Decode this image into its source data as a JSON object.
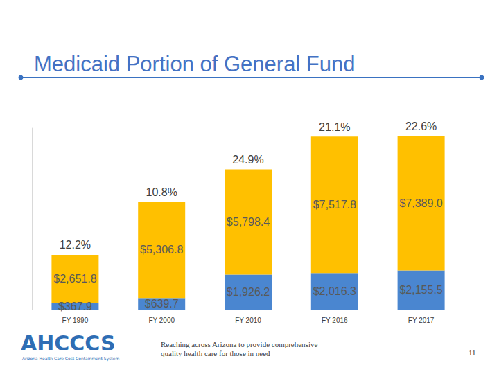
{
  "chart_data": {
    "type": "bar",
    "title": "Medicaid Portion of General Fund",
    "categories": [
      "FY 1990",
      "FY 2000",
      "FY 2010",
      "FY 2016",
      "FY 2017"
    ],
    "series": [
      {
        "color": "#4A86D0",
        "values": [
          367.9,
          639.7,
          1926.2,
          2016.3,
          2155.5
        ],
        "value_labels": [
          "$367.9",
          "$639.7",
          "$1,926.2",
          "$2,016.3",
          "$2,155.5"
        ]
      },
      {
        "color": "#FFC000",
        "values": [
          2651.8,
          5306.8,
          5798.4,
          7517.8,
          7389.0
        ],
        "value_labels": [
          "$2,651.8",
          "$5,306.8",
          "$5,798.4",
          "$7,517.8",
          "$7,389.0"
        ]
      }
    ],
    "annotations": [
      {
        "category": "FY 1990",
        "value": 12.2,
        "label": "12.2%"
      },
      {
        "category": "FY 2000",
        "value": 10.8,
        "label": "10.8%"
      },
      {
        "category": "FY 2010",
        "value": 24.9,
        "label": "24.9%"
      },
      {
        "category": "FY 2016",
        "value": 21.1,
        "label": "21.1%"
      },
      {
        "category": "FY 2017",
        "value": 22.6,
        "label": "22.6%"
      }
    ],
    "ylim": [
      0,
      10000
    ],
    "stacked": true,
    "data_labels": true,
    "grid": false,
    "tick_labels": "x"
  },
  "logo": {
    "name": "AHCCCS",
    "subtitle": "Arizona Health Care Cost Containment System"
  },
  "footer": "Reaching across Arizona to provide comprehensive quality health care for those in need",
  "page_number": "11"
}
